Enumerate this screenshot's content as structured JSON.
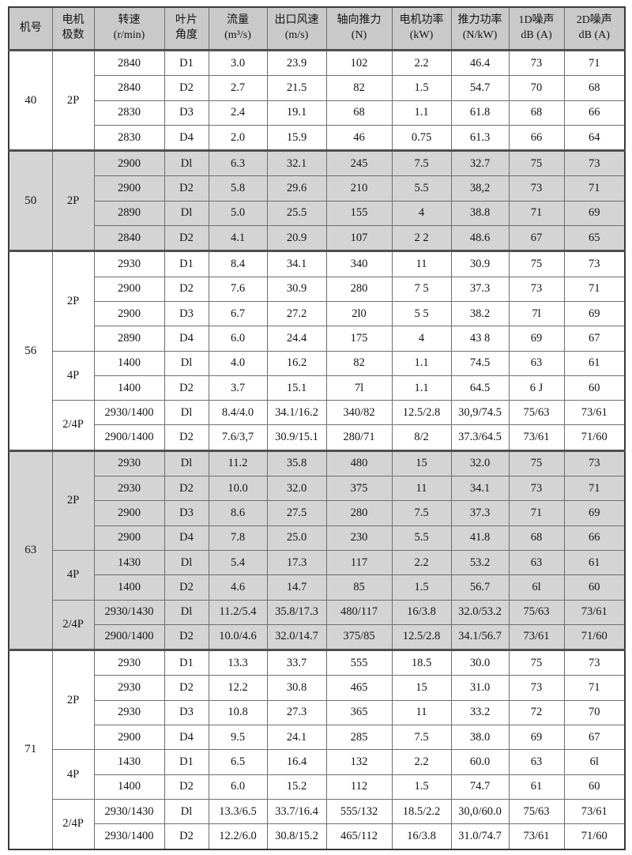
{
  "page": {
    "background": "#ffffff",
    "header_bg": "#c9c9c9",
    "shaded_block_bg": "#d4d4d4",
    "line_color": "#6f6f6f"
  },
  "table": {
    "header": {
      "columns": [
        {
          "id": "machine-size",
          "line1": "机号",
          "line2": ""
        },
        {
          "id": "motor-poles",
          "line1": "电机",
          "line2": "极数"
        },
        {
          "id": "speed",
          "line1": "转速",
          "line2": "(r/min)"
        },
        {
          "id": "blade-angle",
          "line1": "叶片",
          "line2": "角度"
        },
        {
          "id": "flow",
          "line1": "流量",
          "line2": "(m³/s)"
        },
        {
          "id": "outlet-velocity",
          "line1": "出口风速",
          "line2": "(m/s)"
        },
        {
          "id": "axial-thrust",
          "line1": "轴向推力",
          "line2": "(N)"
        },
        {
          "id": "motor-power",
          "line1": "电机功率",
          "line2": "(kW)"
        },
        {
          "id": "thrust-power",
          "line1": "推力功率",
          "line2": "(N/kW)"
        },
        {
          "id": "noise-1d",
          "line1": "1D噪声",
          "line2": "dB (A)"
        },
        {
          "id": "noise-2d",
          "line1": "2D噪声",
          "line2": "dB (A)"
        }
      ]
    },
    "blocks": [
      {
        "size": "40",
        "shaded": false,
        "groups": [
          {
            "poles": "2P",
            "rows": [
              [
                "2840",
                "D1",
                "3.0",
                "23.9",
                "102",
                "2.2",
                "46.4",
                "73",
                "71"
              ],
              [
                "2840",
                "D2",
                "2.7",
                "21.5",
                "82",
                "1.5",
                "54.7",
                "70",
                "68"
              ],
              [
                "2830",
                "D3",
                "2.4",
                "19.1",
                "68",
                "1.1",
                "61.8",
                "68",
                "66"
              ],
              [
                "2830",
                "D4",
                "2.0",
                "15.9",
                "46",
                "0.75",
                "61.3",
                "66",
                "64"
              ]
            ]
          }
        ]
      },
      {
        "size": "50",
        "shaded": true,
        "groups": [
          {
            "poles": "2P",
            "rows": [
              [
                "2900",
                "Dl",
                "6.3",
                "32.1",
                "245",
                "7.5",
                "32.7",
                "75",
                "73"
              ],
              [
                "2900",
                "D2",
                "5.8",
                "29.6",
                "210",
                "5.5",
                "38,2",
                "73",
                "71"
              ],
              [
                "2890",
                "Dl",
                "5.0",
                "25.5",
                "155",
                "4",
                "38.8",
                "71",
                "69"
              ],
              [
                "2840",
                "D2",
                "4.1",
                "20.9",
                "107",
                "2 2",
                "48.6",
                "67",
                "65"
              ]
            ]
          }
        ]
      },
      {
        "size": "56",
        "shaded": false,
        "groups": [
          {
            "poles": "2P",
            "rows": [
              [
                "2930",
                "D1",
                "8.4",
                "34.1",
                "340",
                "11",
                "30.9",
                "75",
                "73"
              ],
              [
                "2900",
                "D2",
                "7.6",
                "30.9",
                "280",
                "7 5",
                "37.3",
                "73",
                "71"
              ],
              [
                "2900",
                "D3",
                "6.7",
                "27.2",
                "2l0",
                "5 5",
                "38.2",
                "7l",
                "69"
              ],
              [
                "2890",
                "D4",
                "6.0",
                "24.4",
                "175",
                "4",
                "43 8",
                "69",
                "67"
              ]
            ]
          },
          {
            "poles": "4P",
            "rows": [
              [
                "1400",
                "Dl",
                "4.0",
                "16.2",
                "82",
                "1.1",
                "74.5",
                "63",
                "61"
              ],
              [
                "1400",
                "D2",
                "3.7",
                "15.1",
                "7l",
                "1.1",
                "64.5",
                "6 J",
                "60"
              ]
            ]
          },
          {
            "poles": "2/4P",
            "rows": [
              [
                "2930/1400",
                "Dl",
                "8.4/4.0",
                "34.1/16.2",
                "340/82",
                "12.5/2.8",
                "30,9/74.5",
                "75/63",
                "73/61"
              ],
              [
                "2900/1400",
                "D2",
                "7.6/3,7",
                "30.9/15.1",
                "280/71",
                "8/2",
                "37.3/64.5",
                "73/61",
                "71/60"
              ]
            ]
          }
        ]
      },
      {
        "size": "63",
        "shaded": true,
        "groups": [
          {
            "poles": "2P",
            "rows": [
              [
                "2930",
                "Dl",
                "11.2",
                "35.8",
                "480",
                "15",
                "32.0",
                "75",
                "73"
              ],
              [
                "2930",
                "D2",
                "10.0",
                "32.0",
                "375",
                "11",
                "34.1",
                "73",
                "71"
              ],
              [
                "2900",
                "D3",
                "8.6",
                "27.5",
                "280",
                "7.5",
                "37.3",
                "71",
                "69"
              ],
              [
                "2900",
                "D4",
                "7.8",
                "25.0",
                "230",
                "5.5",
                "41.8",
                "68",
                "66"
              ]
            ]
          },
          {
            "poles": "4P",
            "rows": [
              [
                "1430",
                "Dl",
                "5.4",
                "17.3",
                "117",
                "2.2",
                "53.2",
                "63",
                "61"
              ],
              [
                "1400",
                "D2",
                "4.6",
                "14.7",
                "85",
                "1.5",
                "56.7",
                "6l",
                "60"
              ]
            ]
          },
          {
            "poles": "2/4P",
            "rows": [
              [
                "2930/1430",
                "Dl",
                "11.2/5.4",
                "35.8/17.3",
                "480/117",
                "16/3.8",
                "32.0/53.2",
                "75/63",
                "73/61"
              ],
              [
                "2900/1400",
                "D2",
                "10.0/4.6",
                "32.0/14.7",
                "375/85",
                "12.5/2.8",
                "34.1/56.7",
                "73/61",
                "71/60"
              ]
            ]
          }
        ]
      },
      {
        "size": "71",
        "shaded": false,
        "groups": [
          {
            "poles": "2P",
            "rows": [
              [
                "2930",
                "D1",
                "13.3",
                "33.7",
                "555",
                "18.5",
                "30.0",
                "75",
                "73"
              ],
              [
                "2930",
                "D2",
                "12.2",
                "30.8",
                "465",
                "15",
                "31.0",
                "73",
                "71"
              ],
              [
                "2930",
                "D3",
                "10.8",
                "27.3",
                "365",
                "11",
                "33.2",
                "72",
                "70"
              ],
              [
                "2900",
                "D4",
                "9.5",
                "24.1",
                "285",
                "7.5",
                "38.0",
                "69",
                "67"
              ]
            ]
          },
          {
            "poles": "4P",
            "rows": [
              [
                "1430",
                "D1",
                "6.5",
                "16.4",
                "132",
                "2.2",
                "60.0",
                "63",
                "6l"
              ],
              [
                "1400",
                "D2",
                "6.0",
                "15.2",
                "112",
                "1.5",
                "74.7",
                "61",
                "60"
              ]
            ]
          },
          {
            "poles": "2/4P",
            "rows": [
              [
                "2930/1430",
                "Dl",
                "13.3/6.5",
                "33.7/16.4",
                "555/132",
                "18.5/2.2",
                "30,0/60.0",
                "75/63",
                "73/61"
              ],
              [
                "2930/1400",
                "D2",
                "12.2/6.0",
                "30.8/15.2",
                "465/112",
                "16/3.8",
                "31.0/74.7",
                "73/61",
                "71/60"
              ]
            ]
          }
        ]
      }
    ]
  }
}
